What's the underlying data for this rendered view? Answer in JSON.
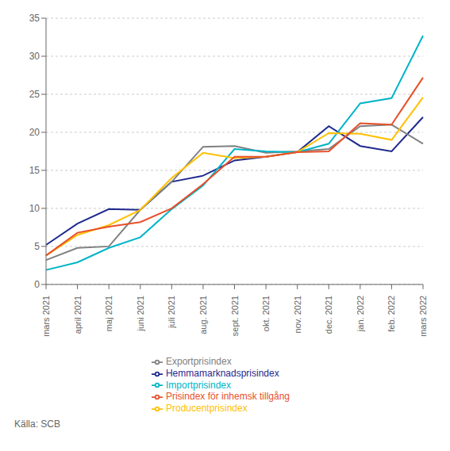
{
  "chart_data": {
    "type": "line",
    "categories": [
      "mars 2021",
      "april 2021",
      "maj 2021",
      "juni 2021",
      "juli 2021",
      "aug. 2021",
      "sept. 2021",
      "okt. 2021",
      "nov. 2021",
      "dec. 2021",
      "jan. 2022",
      "feb. 2022",
      "mars 2022"
    ],
    "series": [
      {
        "name": "Hemmamarknadsprisindex",
        "color": "#1f2a8e",
        "values": [
          5.2,
          8.0,
          9.9,
          9.8,
          13.5,
          14.3,
          16.3,
          16.8,
          17.4,
          20.8,
          18.2,
          17.5,
          22.0
        ]
      },
      {
        "name": "Exportprisindex",
        "color": "#808080",
        "values": [
          3.2,
          4.8,
          5.0,
          9.8,
          13.5,
          18.1,
          18.2,
          17.3,
          17.5,
          17.8,
          20.8,
          21.0,
          18.5
        ]
      },
      {
        "name": "Importprisindex",
        "color": "#00b4c8",
        "values": [
          1.9,
          2.9,
          4.8,
          6.2,
          9.9,
          13.0,
          17.8,
          17.5,
          17.4,
          18.5,
          23.8,
          24.5,
          32.7
        ]
      },
      {
        "name": "Producentprisindex",
        "color": "#ffc000",
        "values": [
          3.8,
          6.5,
          7.8,
          9.8,
          14.0,
          17.3,
          16.6,
          16.8,
          17.4,
          19.9,
          19.8,
          19.0,
          24.6
        ]
      },
      {
        "name": "Prisindex för inhemsk tillgång",
        "color": "#e8502a",
        "values": [
          3.8,
          6.8,
          7.6,
          8.2,
          10.0,
          13.2,
          16.8,
          16.8,
          17.4,
          17.5,
          21.2,
          21.0,
          27.2
        ]
      }
    ],
    "ylim": [
      0,
      35
    ],
    "yticks": [
      0,
      5,
      10,
      15,
      20,
      25,
      30,
      35
    ],
    "grid": true,
    "legend": "bottom",
    "annotations": [
      "Källa: SCB"
    ]
  }
}
